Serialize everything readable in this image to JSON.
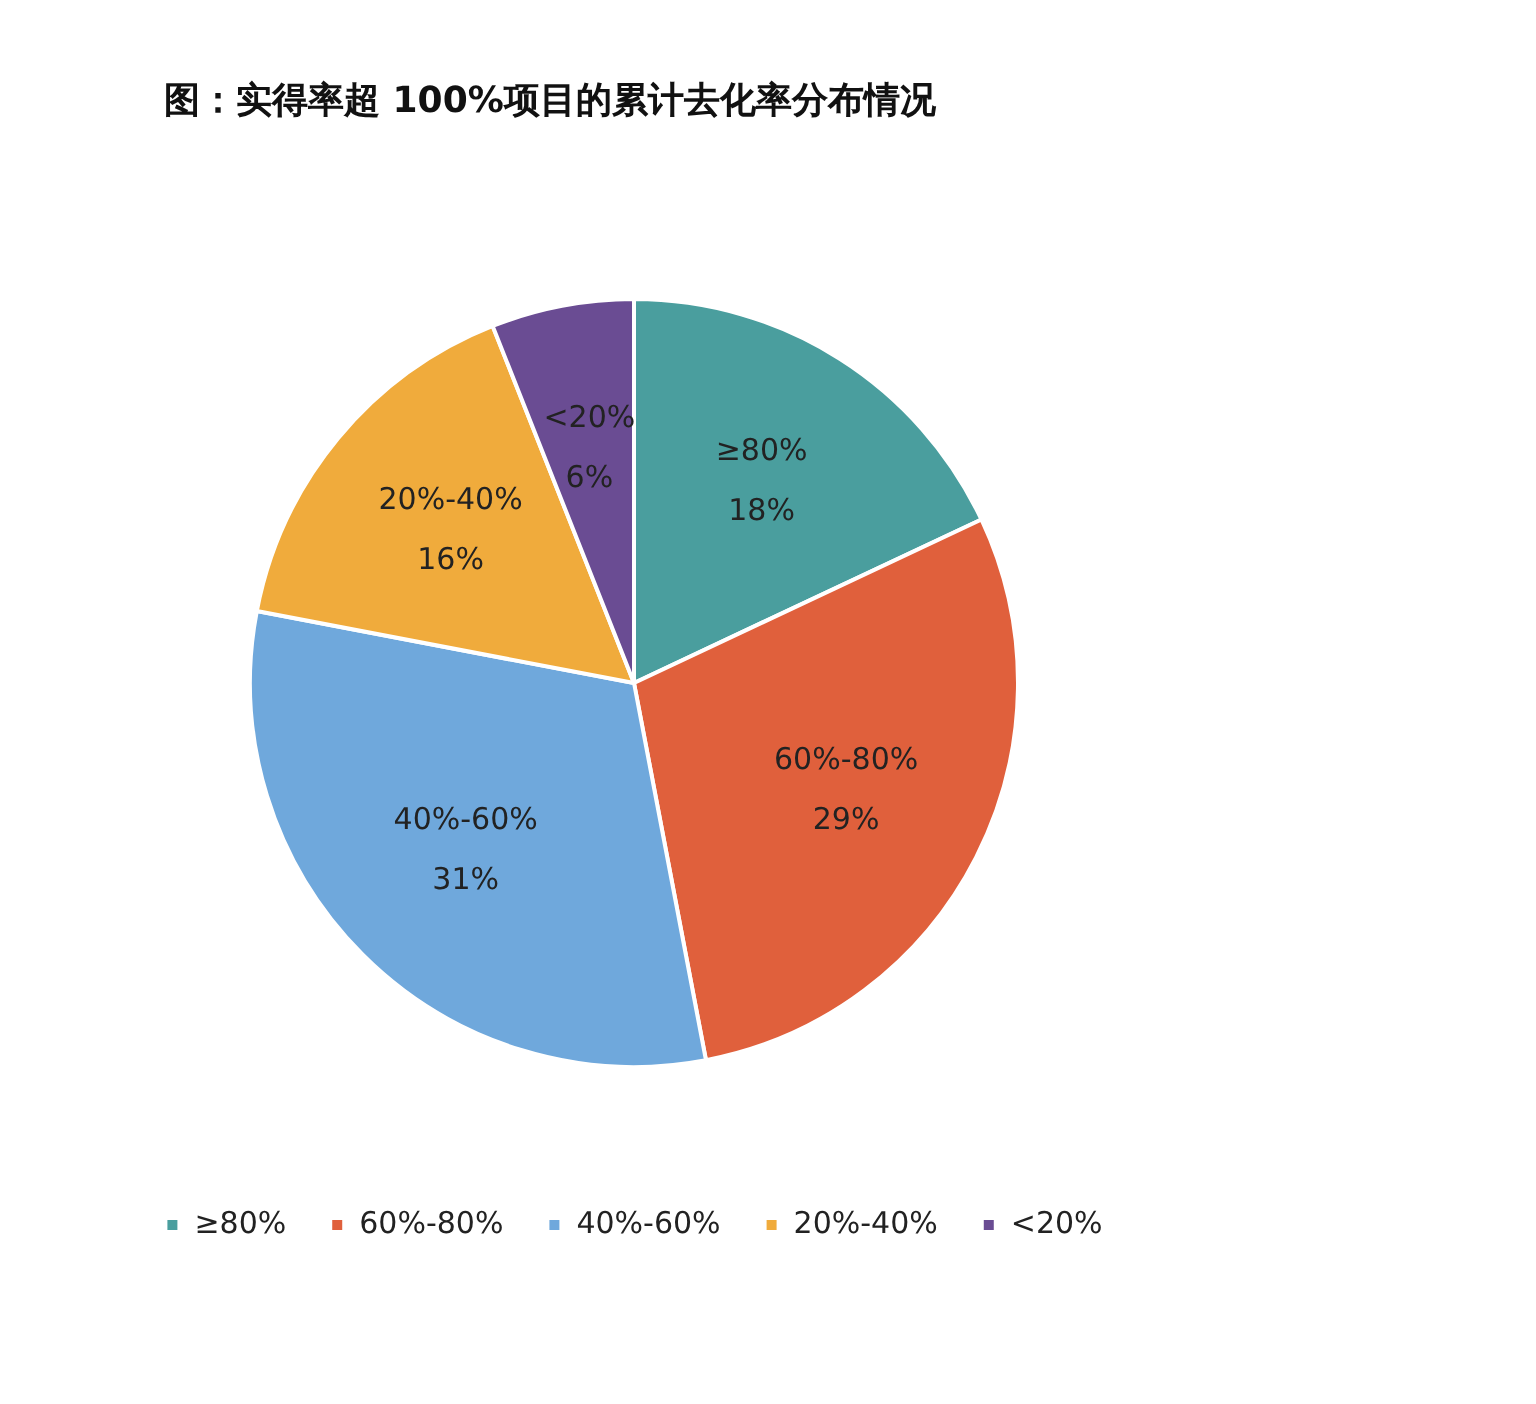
{
  "chart_data": {
    "type": "pie",
    "title": "图：实得率超 100%项目的累计去化率分布情况",
    "categories": [
      "≥80%",
      "60%-80%",
      "40%-60%",
      "20%-40%",
      "<20%"
    ],
    "values": [
      18,
      29,
      31,
      16,
      6
    ],
    "colors": [
      "#4a9e9e",
      "#e0603c",
      "#6fa8dc",
      "#f0ab3c",
      "#6a4c93"
    ],
    "value_labels": [
      "18%",
      "29%",
      "31%",
      "16%",
      "6%"
    ],
    "legend": "bottom"
  }
}
